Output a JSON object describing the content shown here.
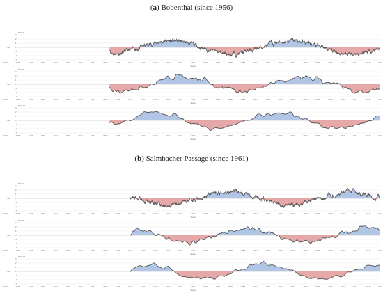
{
  "sections": [
    {
      "letter": "a",
      "title_rest": " Bobenthal (since 1956)",
      "start_year": 1956,
      "panels": [
        {
          "label": "SGI-1",
          "seed": 11,
          "smooth": 1
        },
        {
          "label": "SGI-6",
          "seed": 23,
          "smooth": 6
        },
        {
          "label": "SGI-12",
          "seed": 37,
          "smooth": 12
        }
      ]
    },
    {
      "letter": "b",
      "title_rest": " Salmbacher Passage (since 1961)",
      "start_year": 1961,
      "panels": [
        {
          "label": "SGI-1",
          "seed": 53,
          "smooth": 1
        },
        {
          "label": "SGI-6",
          "seed": 71,
          "smooth": 6
        },
        {
          "label": "SGI-12",
          "seed": 89,
          "smooth": 12
        }
      ]
    }
  ],
  "chart_data": {
    "type": "area",
    "x_unit": "Years",
    "y_label": "SGI",
    "x_range": [
      1931,
      2021
    ],
    "y_range": [
      -3,
      3
    ],
    "y_ticks": [
      3,
      2,
      1,
      0,
      -1,
      -2,
      -3
    ],
    "x_ticks": [
      1931,
      1934,
      1937,
      1940,
      1943,
      1946,
      1949,
      1952,
      1955,
      1958,
      1961,
      1964,
      1967,
      1970,
      1973,
      1976,
      1979,
      1982,
      1985,
      1988,
      1991,
      1994,
      1997,
      2000,
      2003,
      2006,
      2009,
      2012,
      2015,
      2018,
      2021
    ],
    "positive_fill": "#a9bfe2",
    "negative_fill": "#e3a0a0",
    "line_color": "#555555",
    "grid": true
  },
  "axis": {
    "xlabel": "Years",
    "ylabel": "SGI"
  }
}
